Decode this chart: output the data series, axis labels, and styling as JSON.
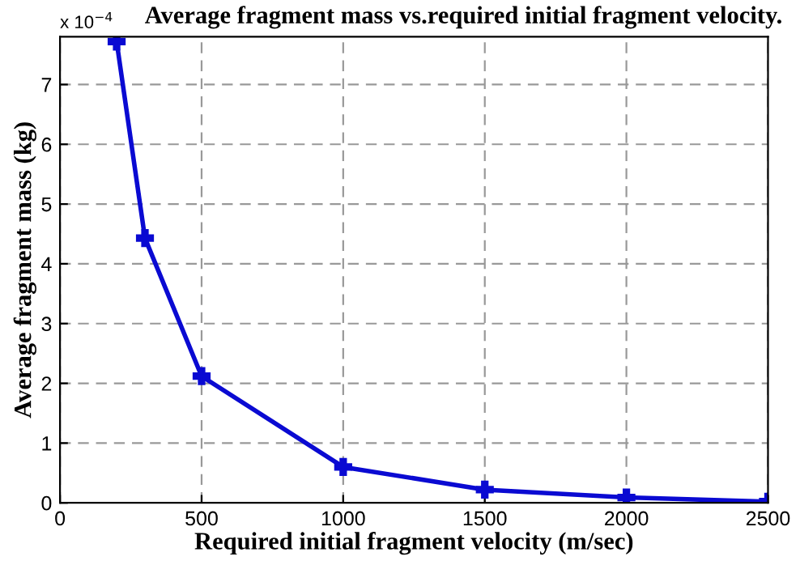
{
  "chart_data": {
    "type": "line",
    "title": "Average fragment mass vs.required initial fragment velocity.",
    "xlabel": "Required initial fragment velocity (m/sec)",
    "ylabel": "Average fragment mass (kg)",
    "x": [
      200,
      300,
      500,
      1000,
      1500,
      2000,
      2500
    ],
    "series": [
      {
        "color": "#0a0ad2",
        "values": [
          7.72,
          4.43,
          2.12,
          0.6,
          0.22,
          0.09,
          0.02
        ]
      }
    ],
    "xlim": [
      0,
      2500
    ],
    "xticks": [
      0,
      500,
      1000,
      1500,
      2000,
      2500
    ],
    "ylim": [
      0,
      7.8
    ],
    "yticks": [
      0,
      1,
      2,
      3,
      4,
      5,
      6,
      7
    ],
    "annotations": [
      "x 10$^{−4}$"
    ],
    "grid": true,
    "marker": "cross",
    "line_style": "solid"
  }
}
